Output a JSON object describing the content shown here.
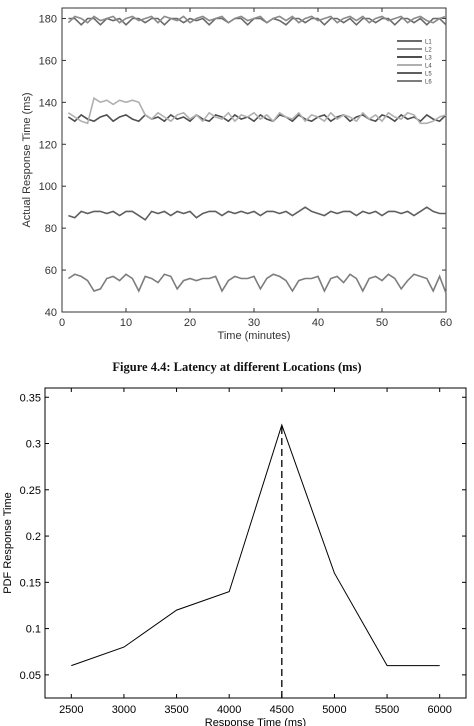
{
  "caption": "Figure 4.4: Latency at different Locations (ms)",
  "chart_data": [
    {
      "type": "line",
      "xlabel": "Time (minutes)",
      "ylabel": "Actual Response Time (ms)",
      "xlim": [
        0,
        60
      ],
      "ylim": [
        40,
        185
      ],
      "xticks": [
        0,
        10,
        20,
        30,
        40,
        50,
        60
      ],
      "yticks": [
        40,
        60,
        80,
        100,
        120,
        140,
        160,
        180
      ],
      "grid": false,
      "legend_position": "top-right",
      "legend_entries": [
        "L1",
        "L2",
        "L3",
        "L4",
        "L5",
        "L6"
      ],
      "series": [
        {
          "color": "#6a6a6a",
          "x": [
            1,
            2,
            3,
            4,
            5,
            6,
            7,
            8,
            9,
            10,
            11,
            12,
            13,
            14,
            15,
            16,
            17,
            18,
            19,
            20,
            21,
            22,
            23,
            24,
            25,
            26,
            27,
            28,
            29,
            30,
            31,
            32,
            33,
            34,
            35,
            36,
            37,
            38,
            39,
            40,
            41,
            42,
            43,
            44,
            45,
            46,
            47,
            48,
            49,
            50,
            51,
            52,
            53,
            54,
            55,
            56,
            57,
            58,
            59,
            60
          ],
          "y": [
            180,
            180,
            177,
            180,
            180,
            177,
            180,
            179,
            180,
            177,
            180,
            180,
            178,
            180,
            180,
            177,
            180,
            180,
            178,
            180,
            179,
            180,
            177,
            180,
            180,
            178,
            180,
            180,
            177,
            180,
            180,
            178,
            180,
            179,
            177,
            180,
            180,
            178,
            180,
            180,
            177,
            180,
            180,
            178,
            180,
            177,
            180,
            180,
            178,
            180,
            180,
            177,
            180,
            180,
            178,
            180,
            177,
            180,
            180,
            177
          ]
        },
        {
          "color": "#8a8a8a",
          "x": [
            1,
            2,
            3,
            4,
            5,
            6,
            7,
            8,
            9,
            10,
            11,
            12,
            13,
            14,
            15,
            16,
            17,
            18,
            19,
            20,
            21,
            22,
            23,
            24,
            25,
            26,
            27,
            28,
            29,
            30,
            31,
            32,
            33,
            34,
            35,
            36,
            37,
            38,
            39,
            40,
            41,
            42,
            43,
            44,
            45,
            46,
            47,
            48,
            49,
            50,
            51,
            52,
            53,
            54,
            55,
            56,
            57,
            58,
            59,
            60
          ],
          "y": [
            178,
            181,
            180,
            178,
            181,
            179,
            180,
            181,
            178,
            180,
            181,
            179,
            180,
            181,
            178,
            181,
            180,
            179,
            181,
            178,
            180,
            181,
            179,
            180,
            181,
            178,
            180,
            181,
            179,
            180,
            181,
            178,
            180,
            181,
            179,
            181,
            178,
            180,
            181,
            179,
            180,
            181,
            178,
            180,
            181,
            179,
            181,
            178,
            180,
            181,
            179,
            180,
            181,
            178,
            180,
            181,
            179,
            178,
            180,
            181
          ]
        },
        {
          "color": "#4f4f4f",
          "x": [
            1,
            2,
            3,
            4,
            5,
            6,
            7,
            8,
            9,
            10,
            11,
            12,
            13,
            14,
            15,
            16,
            17,
            18,
            19,
            20,
            21,
            22,
            23,
            24,
            25,
            26,
            27,
            28,
            29,
            30,
            31,
            32,
            33,
            34,
            35,
            36,
            37,
            38,
            39,
            40,
            41,
            42,
            43,
            44,
            45,
            46,
            47,
            48,
            49,
            50,
            51,
            52,
            53,
            54,
            55,
            56,
            57,
            58,
            59,
            60
          ],
          "y": [
            133,
            131,
            134,
            132,
            131,
            133,
            134,
            131,
            133,
            134,
            132,
            131,
            134,
            132,
            133,
            131,
            134,
            132,
            133,
            131,
            134,
            132,
            131,
            134,
            133,
            131,
            134,
            132,
            133,
            131,
            134,
            132,
            131,
            134,
            133,
            131,
            134,
            132,
            131,
            133,
            134,
            131,
            133,
            134,
            131,
            133,
            134,
            132,
            131,
            134,
            133,
            131,
            134,
            132,
            133,
            131,
            134,
            132,
            131,
            134
          ]
        },
        {
          "color": "#b0b0b0",
          "x": [
            1,
            2,
            3,
            4,
            5,
            6,
            7,
            8,
            9,
            10,
            11,
            12,
            13,
            14,
            15,
            16,
            17,
            18,
            19,
            20,
            21,
            22,
            23,
            24,
            25,
            26,
            27,
            28,
            29,
            30,
            31,
            32,
            33,
            34,
            35,
            36,
            37,
            38,
            39,
            40,
            41,
            42,
            43,
            44,
            45,
            46,
            47,
            48,
            49,
            50,
            51,
            52,
            53,
            54,
            55,
            56,
            57,
            58,
            59,
            60
          ],
          "y": [
            135,
            133,
            131,
            130,
            142,
            140,
            141,
            139,
            141,
            140,
            141,
            140,
            134,
            132,
            135,
            133,
            131,
            134,
            135,
            132,
            134,
            131,
            135,
            133,
            132,
            135,
            131,
            134,
            133,
            135,
            132,
            134,
            131,
            135,
            133,
            132,
            135,
            131,
            134,
            133,
            131,
            135,
            132,
            134,
            133,
            131,
            135,
            132,
            134,
            131,
            135,
            133,
            132,
            135,
            134,
            130,
            130,
            131,
            133,
            134
          ]
        },
        {
          "color": "#5f5f5f",
          "x": [
            1,
            2,
            3,
            4,
            5,
            6,
            7,
            8,
            9,
            10,
            11,
            12,
            13,
            14,
            15,
            16,
            17,
            18,
            19,
            20,
            21,
            22,
            23,
            24,
            25,
            26,
            27,
            28,
            29,
            30,
            31,
            32,
            33,
            34,
            35,
            36,
            37,
            38,
            39,
            40,
            41,
            42,
            43,
            44,
            45,
            46,
            47,
            48,
            49,
            50,
            51,
            52,
            53,
            54,
            55,
            56,
            57,
            58,
            59,
            60
          ],
          "y": [
            86,
            85,
            88,
            87,
            88,
            88,
            87,
            88,
            86,
            88,
            88,
            86,
            84,
            88,
            87,
            88,
            86,
            88,
            87,
            88,
            85,
            87,
            88,
            88,
            86,
            88,
            87,
            88,
            87,
            88,
            86,
            88,
            88,
            87,
            88,
            86,
            88,
            90,
            88,
            87,
            86,
            88,
            87,
            88,
            88,
            86,
            88,
            87,
            88,
            86,
            88,
            88,
            87,
            88,
            86,
            88,
            90,
            88,
            87,
            87
          ]
        },
        {
          "color": "#7d7d7d",
          "x": [
            1,
            2,
            3,
            4,
            5,
            6,
            7,
            8,
            9,
            10,
            11,
            12,
            13,
            14,
            15,
            16,
            17,
            18,
            19,
            20,
            21,
            22,
            23,
            24,
            25,
            26,
            27,
            28,
            29,
            30,
            31,
            32,
            33,
            34,
            35,
            36,
            37,
            38,
            39,
            40,
            41,
            42,
            43,
            44,
            45,
            46,
            47,
            48,
            49,
            50,
            51,
            52,
            53,
            54,
            55,
            56,
            57,
            58,
            59,
            60
          ],
          "y": [
            56,
            58,
            57,
            55,
            50,
            51,
            56,
            57,
            55,
            58,
            56,
            50,
            57,
            56,
            54,
            58,
            57,
            51,
            55,
            56,
            55,
            56,
            56,
            57,
            50,
            55,
            57,
            56,
            56,
            57,
            51,
            56,
            58,
            57,
            55,
            50,
            55,
            56,
            56,
            57,
            50,
            56,
            57,
            54,
            58,
            56,
            50,
            56,
            57,
            55,
            58,
            56,
            51,
            55,
            58,
            57,
            56,
            50,
            57,
            49
          ]
        }
      ]
    },
    {
      "type": "line",
      "xlabel": "Response Time (ms)",
      "ylabel": "PDF Response Time",
      "xlim": [
        2250,
        6250
      ],
      "ylim": [
        0.025,
        0.36
      ],
      "xticks": [
        2500,
        3000,
        3500,
        4000,
        4500,
        5000,
        5500,
        6000
      ],
      "ytick_labels": [
        "0.05",
        "0.1",
        "0.15",
        "0.2",
        "0.25",
        "0.3",
        "0.35"
      ],
      "yticks": [
        0.05,
        0.1,
        0.15,
        0.2,
        0.25,
        0.3,
        0.35
      ],
      "grid": false,
      "series": [
        {
          "x": [
            2500,
            3000,
            3500,
            4000,
            4500,
            5000,
            5500,
            6000
          ],
          "y": [
            0.06,
            0.08,
            0.12,
            0.14,
            0.32,
            0.16,
            0.06,
            0.06
          ]
        }
      ],
      "vline": {
        "x": 4500,
        "style": "dashed"
      }
    }
  ]
}
